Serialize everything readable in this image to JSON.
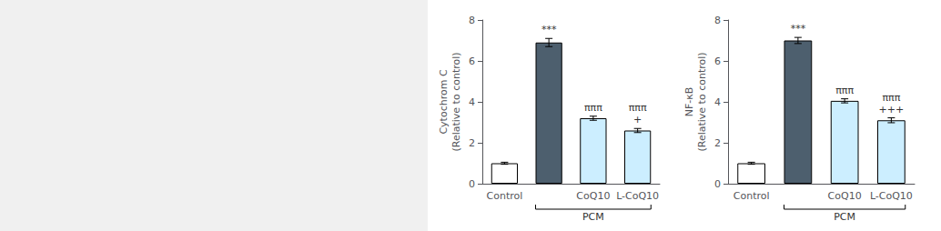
{
  "chart_data": [
    {
      "type": "bar",
      "title": "Cytochrom C",
      "ylabel": "(Relative to control)",
      "categories": [
        "Control",
        null,
        "CoQ10",
        "L-CoQ10"
      ],
      "values": [
        1.0,
        6.9,
        3.2,
        2.6
      ],
      "errors": [
        0.05,
        0.2,
        0.1,
        0.1
      ],
      "colors": [
        "#ffffff",
        "#4d5f6e",
        "#cceeff",
        "#cceeff"
      ],
      "ylim": [
        0,
        8
      ],
      "yticks": [
        0,
        2,
        4,
        6,
        8
      ],
      "grid": false,
      "annotations": [
        {
          "text": "***",
          "bar": 1
        },
        {
          "text": "πππ",
          "bar": 2
        },
        {
          "text": "πππ\n+",
          "bar": 3
        },
        {
          "text": "PCM",
          "bracket": [
            1,
            3
          ]
        }
      ]
    },
    {
      "type": "bar",
      "title": "NF-κB",
      "ylabel": "(Relative to control)",
      "categories": [
        "Control",
        null,
        "CoQ10",
        "L-CoQ10"
      ],
      "values": [
        1.0,
        7.0,
        4.05,
        3.1
      ],
      "errors": [
        0.05,
        0.15,
        0.1,
        0.12
      ],
      "colors": [
        "#ffffff",
        "#4d5f6e",
        "#cceeff",
        "#cceeff"
      ],
      "ylim": [
        0,
        8
      ],
      "yticks": [
        0,
        2,
        4,
        6,
        8
      ],
      "grid": false,
      "annotations": [
        {
          "text": "***",
          "bar": 1
        },
        {
          "text": "πππ",
          "bar": 2
        },
        {
          "text": "πππ\n+++",
          "bar": 3
        },
        {
          "text": "PCM",
          "bracket": [
            1,
            3
          ]
        }
      ]
    }
  ]
}
